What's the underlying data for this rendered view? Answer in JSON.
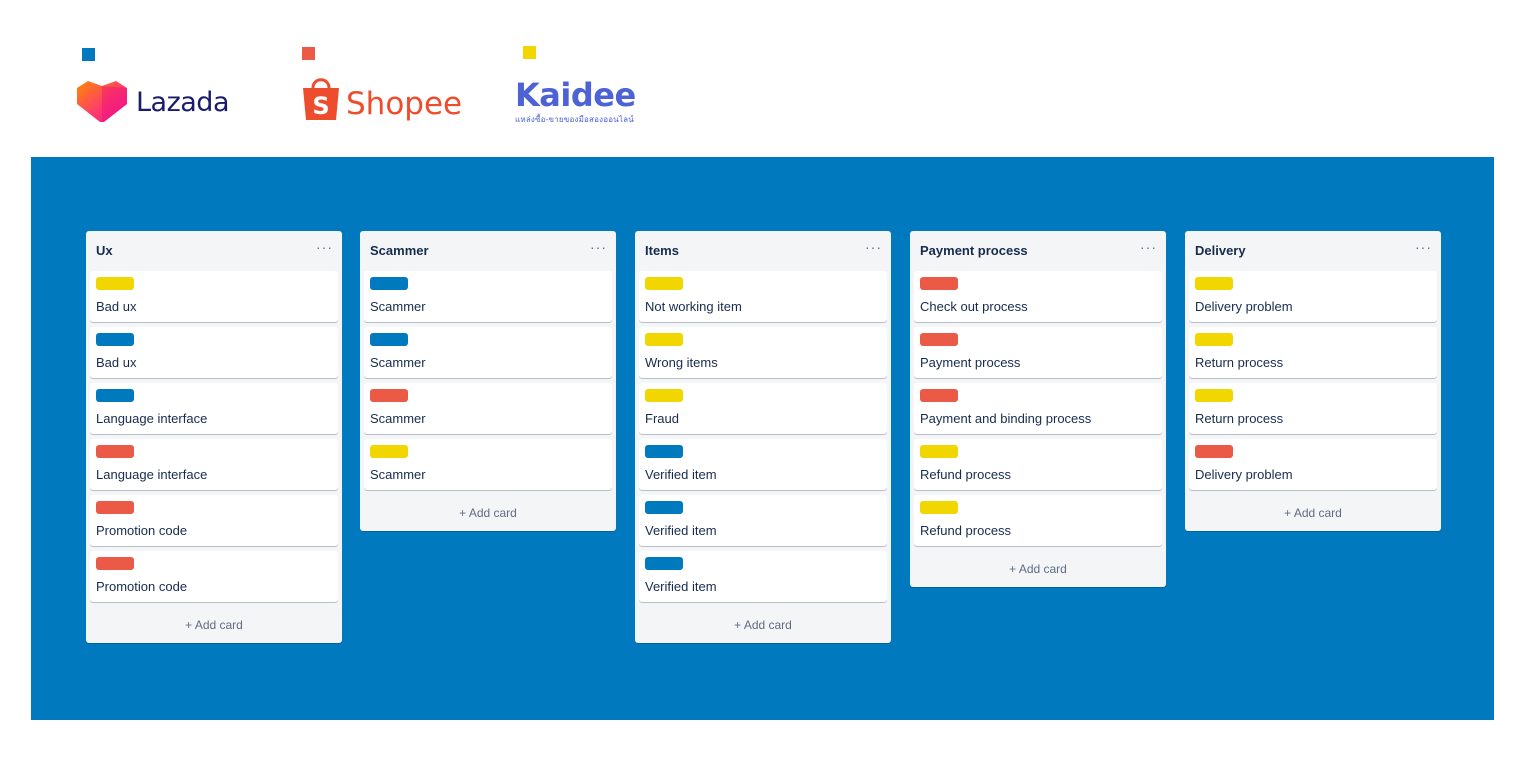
{
  "colors": {
    "board": "#0079bf",
    "blue": "#0079bf",
    "red": "#eb5a46",
    "yellow": "#f2d600"
  },
  "legend": [
    {
      "brand": "Lazada",
      "color": "#0079bf"
    },
    {
      "brand": "Shopee",
      "color": "#eb5a46"
    },
    {
      "brand": "Kaidee",
      "color": "#f2d600"
    }
  ],
  "logos": {
    "lazada": "Lazada",
    "shopee": "Shopee",
    "kaidee": "Kaidee",
    "kaidee_tagline": "แหล่งซื้อ-ขายของมือสองออนไลน์"
  },
  "board": {
    "lists": [
      {
        "title": "Ux",
        "menu": "···",
        "add": "+ Add card",
        "cards": [
          {
            "label": "yellow",
            "title": "Bad ux"
          },
          {
            "label": "blue",
            "title": "Bad ux"
          },
          {
            "label": "blue",
            "title": "Language interface"
          },
          {
            "label": "red",
            "title": "Language interface"
          },
          {
            "label": "red",
            "title": "Promotion code"
          },
          {
            "label": "red",
            "title": "Promotion code"
          }
        ]
      },
      {
        "title": "Scammer",
        "menu": "···",
        "add": "+ Add card",
        "cards": [
          {
            "label": "blue",
            "title": "Scammer"
          },
          {
            "label": "blue",
            "title": "Scammer"
          },
          {
            "label": "red",
            "title": "Scammer"
          },
          {
            "label": "yellow",
            "title": "Scammer"
          }
        ]
      },
      {
        "title": "Items",
        "menu": "···",
        "add": "+ Add card",
        "cards": [
          {
            "label": "yellow",
            "title": "Not working item"
          },
          {
            "label": "yellow",
            "title": "Wrong items"
          },
          {
            "label": "yellow",
            "title": "Fraud"
          },
          {
            "label": "blue",
            "title": "Verified item"
          },
          {
            "label": "blue",
            "title": "Verified item"
          },
          {
            "label": "blue",
            "title": "Verified item"
          }
        ]
      },
      {
        "title": "Payment process",
        "menu": "···",
        "add": "+ Add card",
        "cards": [
          {
            "label": "red",
            "title": "Check out process"
          },
          {
            "label": "red",
            "title": "Payment process"
          },
          {
            "label": "red",
            "title": "Payment and binding process"
          },
          {
            "label": "yellow",
            "title": "Refund process"
          },
          {
            "label": "yellow",
            "title": "Refund process"
          }
        ]
      },
      {
        "title": "Delivery",
        "menu": "···",
        "add": "+ Add card",
        "cards": [
          {
            "label": "yellow",
            "title": "Delivery problem"
          },
          {
            "label": "yellow",
            "title": "Return process"
          },
          {
            "label": "yellow",
            "title": "Return process"
          },
          {
            "label": "red",
            "title": "Delivery problem"
          }
        ]
      }
    ]
  }
}
